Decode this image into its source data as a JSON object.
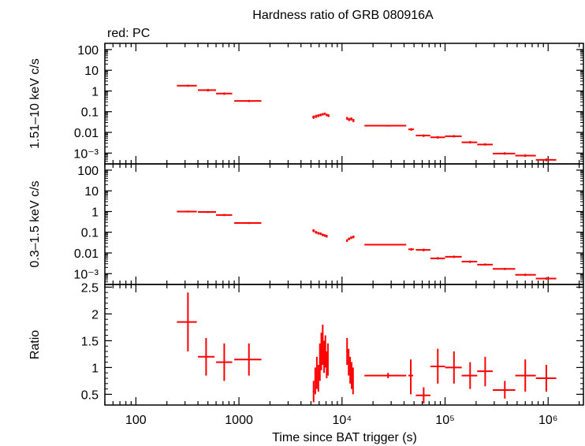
{
  "title": "Hardness ratio of GRB 080916A",
  "legend_text": "red: PC",
  "colors": {
    "data": "#ff0000",
    "axes": "#000000"
  },
  "chart_data": [
    {
      "type": "scatter",
      "name": "hard",
      "ylabel": "1.51–10 keV c/s",
      "yscale": "log",
      "ylim": [
        0.0003,
        200
      ],
      "yticks": [
        {
          "v": 100,
          "label": "100"
        },
        {
          "v": 10,
          "label": "10"
        },
        {
          "v": 1,
          "label": "1"
        },
        {
          "v": 0.1,
          "label": "0.1"
        },
        {
          "v": 0.01,
          "label": "0.01"
        },
        {
          "v": 0.001,
          "label": "10⁻³"
        }
      ],
      "points": [
        {
          "x": 320,
          "xlo": 250,
          "xhi": 390,
          "y": 1.8,
          "ylo": 1.6,
          "yhi": 2.0
        },
        {
          "x": 500,
          "xlo": 400,
          "xhi": 600,
          "y": 1.1,
          "ylo": 0.95,
          "yhi": 1.25
        },
        {
          "x": 720,
          "xlo": 600,
          "xhi": 860,
          "y": 0.75,
          "ylo": 0.65,
          "yhi": 0.85
        },
        {
          "x": 1250,
          "xlo": 900,
          "xhi": 1650,
          "y": 0.33,
          "ylo": 0.29,
          "yhi": 0.37
        },
        {
          "x": 5300,
          "xlo": 5150,
          "xhi": 5450,
          "y": 0.055,
          "ylo": 0.045,
          "yhi": 0.065
        },
        {
          "x": 5600,
          "xlo": 5450,
          "xhi": 5750,
          "y": 0.06,
          "ylo": 0.05,
          "yhi": 0.07
        },
        {
          "x": 5900,
          "xlo": 5750,
          "xhi": 6050,
          "y": 0.065,
          "ylo": 0.055,
          "yhi": 0.075
        },
        {
          "x": 6200,
          "xlo": 6050,
          "xhi": 6350,
          "y": 0.07,
          "ylo": 0.06,
          "yhi": 0.08
        },
        {
          "x": 6500,
          "xlo": 6350,
          "xhi": 6650,
          "y": 0.075,
          "ylo": 0.065,
          "yhi": 0.085
        },
        {
          "x": 6800,
          "xlo": 6650,
          "xhi": 6950,
          "y": 0.08,
          "ylo": 0.07,
          "yhi": 0.09
        },
        {
          "x": 7100,
          "xlo": 6950,
          "xhi": 7250,
          "y": 0.07,
          "ylo": 0.06,
          "yhi": 0.08
        },
        {
          "x": 7400,
          "xlo": 7250,
          "xhi": 7550,
          "y": 0.065,
          "ylo": 0.055,
          "yhi": 0.075
        },
        {
          "x": 11200,
          "xlo": 11000,
          "xhi": 11400,
          "y": 0.048,
          "ylo": 0.04,
          "yhi": 0.056
        },
        {
          "x": 11700,
          "xlo": 11400,
          "xhi": 12000,
          "y": 0.042,
          "ylo": 0.035,
          "yhi": 0.05
        },
        {
          "x": 12300,
          "xlo": 12000,
          "xhi": 12600,
          "y": 0.045,
          "ylo": 0.037,
          "yhi": 0.053
        },
        {
          "x": 12900,
          "xlo": 12600,
          "xhi": 13200,
          "y": 0.038,
          "ylo": 0.031,
          "yhi": 0.045
        },
        {
          "x": 28000,
          "xlo": 16500,
          "xhi": 42000,
          "y": 0.021,
          "ylo": 0.019,
          "yhi": 0.023
        },
        {
          "x": 47000,
          "xlo": 44000,
          "xhi": 50000,
          "y": 0.014,
          "ylo": 0.012,
          "yhi": 0.016
        },
        {
          "x": 62000,
          "xlo": 52000,
          "xhi": 72000,
          "y": 0.007,
          "ylo": 0.006,
          "yhi": 0.008
        },
        {
          "x": 85000,
          "xlo": 72000,
          "xhi": 100000,
          "y": 0.0058,
          "ylo": 0.005,
          "yhi": 0.0066
        },
        {
          "x": 122000,
          "xlo": 100000,
          "xhi": 145000,
          "y": 0.0065,
          "ylo": 0.0057,
          "yhi": 0.0074
        },
        {
          "x": 175000,
          "xlo": 145000,
          "xhi": 205000,
          "y": 0.0033,
          "ylo": 0.0029,
          "yhi": 0.0038
        },
        {
          "x": 245000,
          "xlo": 205000,
          "xhi": 290000,
          "y": 0.0026,
          "ylo": 0.0023,
          "yhi": 0.003
        },
        {
          "x": 380000,
          "xlo": 290000,
          "xhi": 480000,
          "y": 0.00095,
          "ylo": 0.00083,
          "yhi": 0.0011
        },
        {
          "x": 600000,
          "xlo": 480000,
          "xhi": 760000,
          "y": 0.00075,
          "ylo": 0.00065,
          "yhi": 0.00087
        },
        {
          "x": 960000,
          "xlo": 760000,
          "xhi": 1200000,
          "y": 0.00047,
          "ylo": 0.0004,
          "yhi": 0.00055
        }
      ]
    },
    {
      "type": "scatter",
      "name": "soft",
      "ylabel": "0.3–1.5 keV c/s",
      "yscale": "log",
      "ylim": [
        0.0003,
        200
      ],
      "yticks": [
        {
          "v": 100,
          "label": "100"
        },
        {
          "v": 10,
          "label": "10"
        },
        {
          "v": 1,
          "label": "1"
        },
        {
          "v": 0.1,
          "label": "0.1"
        },
        {
          "v": 0.01,
          "label": "0.01"
        },
        {
          "v": 0.001,
          "label": "10⁻³"
        }
      ],
      "points": [
        {
          "x": 320,
          "xlo": 250,
          "xhi": 390,
          "y": 1.0,
          "ylo": 0.9,
          "yhi": 1.1
        },
        {
          "x": 500,
          "xlo": 400,
          "xhi": 600,
          "y": 0.95,
          "ylo": 0.85,
          "yhi": 1.05
        },
        {
          "x": 720,
          "xlo": 600,
          "xhi": 860,
          "y": 0.68,
          "ylo": 0.6,
          "yhi": 0.76
        },
        {
          "x": 1250,
          "xlo": 900,
          "xhi": 1650,
          "y": 0.28,
          "ylo": 0.25,
          "yhi": 0.31
        },
        {
          "x": 5300,
          "xlo": 5150,
          "xhi": 5450,
          "y": 0.12,
          "ylo": 0.1,
          "yhi": 0.14
        },
        {
          "x": 5600,
          "xlo": 5450,
          "xhi": 5750,
          "y": 0.1,
          "ylo": 0.085,
          "yhi": 0.115
        },
        {
          "x": 5900,
          "xlo": 5750,
          "xhi": 6050,
          "y": 0.09,
          "ylo": 0.077,
          "yhi": 0.103
        },
        {
          "x": 6200,
          "xlo": 6050,
          "xhi": 6350,
          "y": 0.085,
          "ylo": 0.073,
          "yhi": 0.097
        },
        {
          "x": 6500,
          "xlo": 6350,
          "xhi": 6650,
          "y": 0.075,
          "ylo": 0.064,
          "yhi": 0.086
        },
        {
          "x": 6800,
          "xlo": 6650,
          "xhi": 6950,
          "y": 0.07,
          "ylo": 0.06,
          "yhi": 0.08
        },
        {
          "x": 7100,
          "xlo": 6950,
          "xhi": 7250,
          "y": 0.065,
          "ylo": 0.055,
          "yhi": 0.075
        },
        {
          "x": 11200,
          "xlo": 11000,
          "xhi": 11400,
          "y": 0.04,
          "ylo": 0.034,
          "yhi": 0.046
        },
        {
          "x": 11700,
          "xlo": 11400,
          "xhi": 12000,
          "y": 0.048,
          "ylo": 0.041,
          "yhi": 0.055
        },
        {
          "x": 12300,
          "xlo": 12000,
          "xhi": 12600,
          "y": 0.055,
          "ylo": 0.047,
          "yhi": 0.063
        },
        {
          "x": 12900,
          "xlo": 12600,
          "xhi": 13200,
          "y": 0.06,
          "ylo": 0.051,
          "yhi": 0.069
        },
        {
          "x": 28000,
          "xlo": 16500,
          "xhi": 42000,
          "y": 0.025,
          "ylo": 0.023,
          "yhi": 0.027
        },
        {
          "x": 47000,
          "xlo": 44000,
          "xhi": 50000,
          "y": 0.015,
          "ylo": 0.013,
          "yhi": 0.017
        },
        {
          "x": 62000,
          "xlo": 52000,
          "xhi": 72000,
          "y": 0.014,
          "ylo": 0.012,
          "yhi": 0.016
        },
        {
          "x": 85000,
          "xlo": 72000,
          "xhi": 100000,
          "y": 0.0055,
          "ylo": 0.0048,
          "yhi": 0.0063
        },
        {
          "x": 122000,
          "xlo": 100000,
          "xhi": 145000,
          "y": 0.0065,
          "ylo": 0.0057,
          "yhi": 0.0074
        },
        {
          "x": 175000,
          "xlo": 145000,
          "xhi": 205000,
          "y": 0.0038,
          "ylo": 0.0033,
          "yhi": 0.0043
        },
        {
          "x": 245000,
          "xlo": 205000,
          "xhi": 290000,
          "y": 0.0027,
          "ylo": 0.0024,
          "yhi": 0.0031
        },
        {
          "x": 380000,
          "xlo": 290000,
          "xhi": 480000,
          "y": 0.0017,
          "ylo": 0.0015,
          "yhi": 0.0019
        },
        {
          "x": 600000,
          "xlo": 480000,
          "xhi": 760000,
          "y": 0.00088,
          "ylo": 0.00077,
          "yhi": 0.001
        },
        {
          "x": 960000,
          "xlo": 760000,
          "xhi": 1200000,
          "y": 0.00058,
          "ylo": 0.00051,
          "yhi": 0.00066
        }
      ]
    },
    {
      "type": "scatter",
      "name": "ratio",
      "ylabel": "Ratio",
      "yscale": "linear",
      "ylim": [
        0.3,
        2.55
      ],
      "yticks": [
        {
          "v": 2.5,
          "label": "2.5"
        },
        {
          "v": 2.0,
          "label": "2"
        },
        {
          "v": 1.5,
          "label": "1.5"
        },
        {
          "v": 1.0,
          "label": "1"
        },
        {
          "v": 0.5,
          "label": "0.5"
        }
      ],
      "points": [
        {
          "x": 320,
          "xlo": 250,
          "xhi": 390,
          "y": 1.85,
          "ylo": 1.3,
          "yhi": 2.4
        },
        {
          "x": 480,
          "xlo": 400,
          "xhi": 580,
          "y": 1.2,
          "ylo": 0.85,
          "yhi": 1.55
        },
        {
          "x": 720,
          "xlo": 600,
          "xhi": 860,
          "y": 1.1,
          "ylo": 0.75,
          "yhi": 1.45
        },
        {
          "x": 1250,
          "xlo": 900,
          "xhi": 1650,
          "y": 1.15,
          "ylo": 0.85,
          "yhi": 1.45
        },
        {
          "x": 5300,
          "xlo": 5200,
          "xhi": 5400,
          "y": 0.55,
          "ylo": 0.35,
          "yhi": 0.75
        },
        {
          "x": 5500,
          "xlo": 5400,
          "xhi": 5600,
          "y": 0.75,
          "ylo": 0.5,
          "yhi": 1.0
        },
        {
          "x": 5700,
          "xlo": 5600,
          "xhi": 5800,
          "y": 0.9,
          "ylo": 0.6,
          "yhi": 1.2
        },
        {
          "x": 5900,
          "xlo": 5800,
          "xhi": 6000,
          "y": 0.8,
          "ylo": 0.55,
          "yhi": 1.05
        },
        {
          "x": 6100,
          "xlo": 6000,
          "xhi": 6200,
          "y": 1.1,
          "ylo": 0.75,
          "yhi": 1.45
        },
        {
          "x": 6300,
          "xlo": 6200,
          "xhi": 6400,
          "y": 1.3,
          "ylo": 0.95,
          "yhi": 1.65
        },
        {
          "x": 6500,
          "xlo": 6400,
          "xhi": 6600,
          "y": 1.45,
          "ylo": 1.05,
          "yhi": 1.8
        },
        {
          "x": 6700,
          "xlo": 6600,
          "xhi": 6800,
          "y": 1.2,
          "ylo": 0.9,
          "yhi": 1.5
        },
        {
          "x": 6900,
          "xlo": 6800,
          "xhi": 7000,
          "y": 1.3,
          "ylo": 1.0,
          "yhi": 1.6
        },
        {
          "x": 7100,
          "xlo": 7000,
          "xhi": 7200,
          "y": 1.05,
          "ylo": 0.8,
          "yhi": 1.3
        },
        {
          "x": 7300,
          "xlo": 7200,
          "xhi": 7400,
          "y": 1.15,
          "ylo": 0.85,
          "yhi": 1.45
        },
        {
          "x": 11200,
          "xlo": 11000,
          "xhi": 11400,
          "y": 1.3,
          "ylo": 1.05,
          "yhi": 1.55
        },
        {
          "x": 11600,
          "xlo": 11400,
          "xhi": 11800,
          "y": 1.1,
          "ylo": 0.85,
          "yhi": 1.35
        },
        {
          "x": 12000,
          "xlo": 11800,
          "xhi": 12200,
          "y": 0.95,
          "ylo": 0.7,
          "yhi": 1.2
        },
        {
          "x": 12400,
          "xlo": 12200,
          "xhi": 12600,
          "y": 0.85,
          "ylo": 0.6,
          "yhi": 1.1
        },
        {
          "x": 12800,
          "xlo": 12600,
          "xhi": 13000,
          "y": 0.75,
          "ylo": 0.5,
          "yhi": 1.0
        },
        {
          "x": 28000,
          "xlo": 16500,
          "xhi": 42000,
          "y": 0.85,
          "ylo": 0.8,
          "yhi": 0.9
        },
        {
          "x": 46500,
          "xlo": 44000,
          "xhi": 49000,
          "y": 0.85,
          "ylo": 0.5,
          "yhi": 1.15
        },
        {
          "x": 62000,
          "xlo": 52000,
          "xhi": 72000,
          "y": 0.48,
          "ylo": 0.33,
          "yhi": 0.63
        },
        {
          "x": 85000,
          "xlo": 72000,
          "xhi": 100000,
          "y": 1.02,
          "ylo": 0.7,
          "yhi": 1.35
        },
        {
          "x": 122000,
          "xlo": 100000,
          "xhi": 145000,
          "y": 1.0,
          "ylo": 0.7,
          "yhi": 1.3
        },
        {
          "x": 175000,
          "xlo": 145000,
          "xhi": 205000,
          "y": 0.85,
          "ylo": 0.6,
          "yhi": 1.1
        },
        {
          "x": 245000,
          "xlo": 205000,
          "xhi": 290000,
          "y": 0.93,
          "ylo": 0.65,
          "yhi": 1.2
        },
        {
          "x": 380000,
          "xlo": 290000,
          "xhi": 480000,
          "y": 0.58,
          "ylo": 0.42,
          "yhi": 0.75
        },
        {
          "x": 600000,
          "xlo": 480000,
          "xhi": 760000,
          "y": 0.85,
          "ylo": 0.55,
          "yhi": 1.15
        },
        {
          "x": 960000,
          "xlo": 760000,
          "xhi": 1200000,
          "y": 0.8,
          "ylo": 0.55,
          "yhi": 1.05
        }
      ]
    }
  ],
  "xaxis": {
    "label": "Time since BAT trigger (s)",
    "scale": "log",
    "xlim": [
      50,
      2200000
    ],
    "ticks": [
      {
        "v": 100,
        "label": "100"
      },
      {
        "v": 1000,
        "label": "1000"
      },
      {
        "v": 10000,
        "label": "10⁴"
      },
      {
        "v": 100000,
        "label": "10⁵"
      },
      {
        "v": 1000000,
        "label": "10⁶"
      }
    ]
  }
}
